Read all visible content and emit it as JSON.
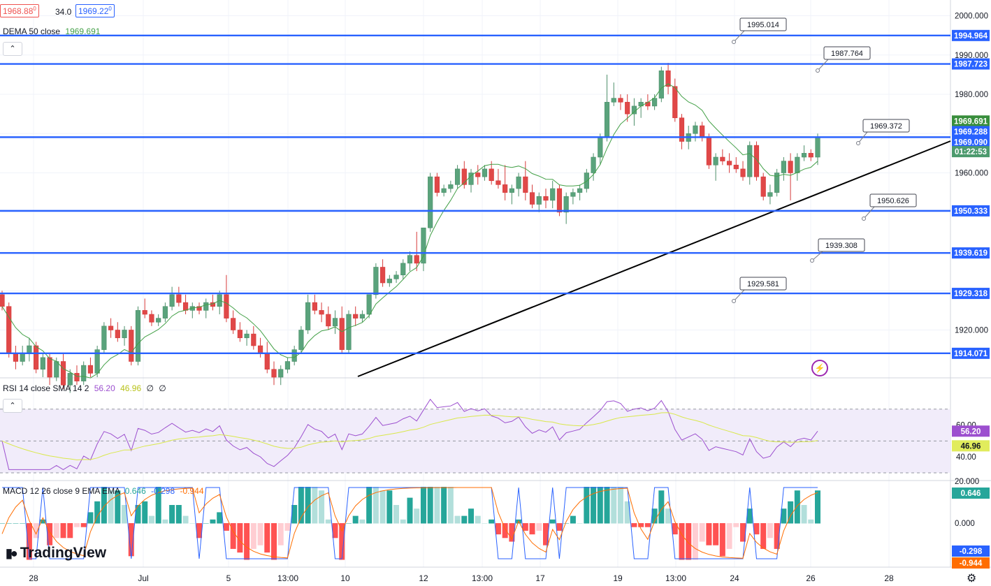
{
  "header": {
    "bid": "1968.88",
    "bid_sup": "0",
    "spread": "34.0",
    "ask": "1969.22",
    "ask_sup": "0",
    "dema_label": "DEMA 50 close",
    "dema_value": "1969.691"
  },
  "rsi": {
    "label": "RSI 14 close SMA 14 2",
    "value": "56.20",
    "sma_value": "46.96",
    "extra1": "∅",
    "extra2": "∅",
    "ticks": [
      "60.00",
      "40.00"
    ]
  },
  "macd": {
    "label": "MACD 12 26 close 9 EMA EMA",
    "hist_value": "0.646",
    "macd_value": "-0.298",
    "signal_value": "-0.944",
    "ticks": [
      "20.000",
      "0.000"
    ]
  },
  "price_axis": {
    "ticks": [
      "2000.000",
      "1990.000",
      "1980.000",
      "1960.000",
      "1920.000"
    ],
    "tags": [
      {
        "text": "1994.964",
        "color": "#2962ff",
        "price": 1994.964
      },
      {
        "text": "1987.723",
        "color": "#2962ff",
        "price": 1987.723
      },
      {
        "text": "1969.691",
        "color": "#388e3c",
        "price": 1973.2
      },
      {
        "text": "1969.288",
        "color": "#2962ff",
        "price": 1970.5
      },
      {
        "text": "1969.090",
        "color": "#2962ff",
        "price": 1967.8
      },
      {
        "text": "01:22:53",
        "color": "#4c9a6d",
        "price": 1965.4
      },
      {
        "text": "1950.333",
        "color": "#2962ff",
        "price": 1950.333
      },
      {
        "text": "1939.619",
        "color": "#2962ff",
        "price": 1939.619
      },
      {
        "text": "1929.318",
        "color": "#2962ff",
        "price": 1929.318
      },
      {
        "text": "1914.071",
        "color": "#2962ff",
        "price": 1914.071
      }
    ]
  },
  "time_axis": [
    "28",
    "Jul",
    "5",
    "13:00",
    "10",
    "12",
    "13:00",
    "17",
    "19",
    "13:00",
    "24",
    "26",
    "28"
  ],
  "callouts": [
    "1995.014",
    "1987.764",
    "1969.372",
    "1950.626",
    "1939.308",
    "1929.581"
  ],
  "levels": [
    1994.964,
    1987.723,
    1969.09,
    1950.333,
    1939.619,
    1929.318,
    1914.071
  ],
  "logo_text": "TradingView",
  "colors": {
    "up": "#26a69a",
    "down": "#ef5350",
    "level": "#2962ff",
    "dema": "#43a047",
    "rsi": "#9c4fcf",
    "rsi_sma": "#d9e84a",
    "macd": "#2962ff",
    "signal": "#ff6d00"
  },
  "chart_data": {
    "type": "candlestick",
    "y_range": [
      1908,
      2004
    ],
    "candles": [
      [
        1929,
        1930,
        1925,
        1926
      ],
      [
        1926,
        1927,
        1913,
        1914
      ],
      [
        1914,
        1916,
        1910,
        1912
      ],
      [
        1912,
        1916,
        1911,
        1914
      ],
      [
        1914,
        1918,
        1912,
        1916
      ],
      [
        1916,
        1917,
        1909,
        1910
      ],
      [
        1910,
        1914,
        1908,
        1913
      ],
      [
        1913,
        1914,
        1906,
        1908
      ],
      [
        1908,
        1913,
        1907,
        1912
      ],
      [
        1912,
        1914,
        1905,
        1906
      ],
      [
        1906,
        1910,
        1904,
        1909
      ],
      [
        1909,
        1911,
        1906,
        1907
      ],
      [
        1907,
        1912,
        1906,
        1911
      ],
      [
        1911,
        1913,
        1908,
        1909
      ],
      [
        1909,
        1916,
        1908,
        1915
      ],
      [
        1915,
        1922,
        1914,
        1921
      ],
      [
        1921,
        1923,
        1918,
        1920
      ],
      [
        1920,
        1922,
        1917,
        1918
      ],
      [
        1918,
        1921,
        1916,
        1920
      ],
      [
        1920,
        1921,
        1911,
        1912
      ],
      [
        1912,
        1926,
        1911,
        1925
      ],
      [
        1925,
        1928,
        1923,
        1924
      ],
      [
        1924,
        1925,
        1921,
        1922
      ],
      [
        1922,
        1924,
        1921,
        1923
      ],
      [
        1923,
        1927,
        1922,
        1926
      ],
      [
        1926,
        1931,
        1925,
        1929
      ],
      [
        1929,
        1931,
        1926,
        1927
      ],
      [
        1927,
        1929,
        1924,
        1925
      ],
      [
        1925,
        1927,
        1923,
        1926
      ],
      [
        1926,
        1927,
        1924,
        1925
      ],
      [
        1925,
        1928,
        1923,
        1927
      ],
      [
        1927,
        1929,
        1925,
        1926
      ],
      [
        1926,
        1930,
        1924,
        1929
      ],
      [
        1929,
        1934,
        1922,
        1923
      ],
      [
        1923,
        1925,
        1919,
        1920
      ],
      [
        1920,
        1922,
        1917,
        1918
      ],
      [
        1918,
        1920,
        1916,
        1919
      ],
      [
        1919,
        1921,
        1915,
        1916
      ],
      [
        1916,
        1918,
        1913,
        1914
      ],
      [
        1914,
        1917,
        1909,
        1910
      ],
      [
        1910,
        1912,
        1906,
        1908
      ],
      [
        1908,
        1911,
        1906,
        1910
      ],
      [
        1910,
        1913,
        1909,
        1912
      ],
      [
        1912,
        1916,
        1911,
        1915
      ],
      [
        1915,
        1921,
        1914,
        1920
      ],
      [
        1920,
        1929,
        1919,
        1927
      ],
      [
        1927,
        1929,
        1924,
        1925
      ],
      [
        1925,
        1927,
        1922,
        1924
      ],
      [
        1924,
        1926,
        1920,
        1921
      ],
      [
        1921,
        1925,
        1919,
        1923
      ],
      [
        1923,
        1926,
        1914,
        1915
      ],
      [
        1915,
        1925,
        1914,
        1924
      ],
      [
        1924,
        1926,
        1921,
        1923
      ],
      [
        1923,
        1925,
        1922,
        1924
      ],
      [
        1924,
        1929,
        1923,
        1929
      ],
      [
        1929,
        1937,
        1928,
        1936
      ],
      [
        1936,
        1938,
        1931,
        1932
      ],
      [
        1932,
        1934,
        1931,
        1933
      ],
      [
        1933,
        1935,
        1932,
        1934
      ],
      [
        1934,
        1938,
        1933,
        1937
      ],
      [
        1937,
        1940,
        1935,
        1939
      ],
      [
        1939,
        1945,
        1935,
        1937
      ],
      [
        1937,
        1946,
        1935,
        1946
      ],
      [
        1946,
        1960,
        1945,
        1959
      ],
      [
        1959,
        1960,
        1954,
        1955
      ],
      [
        1955,
        1957,
        1954,
        1956
      ],
      [
        1956,
        1958,
        1955,
        1957
      ],
      [
        1957,
        1962,
        1956,
        1961
      ],
      [
        1961,
        1963,
        1956,
        1957
      ],
      [
        1957,
        1961,
        1955,
        1960
      ],
      [
        1960,
        1962,
        1957,
        1959
      ],
      [
        1959,
        1962,
        1958,
        1961
      ],
      [
        1961,
        1963,
        1957,
        1958
      ],
      [
        1958,
        1961,
        1956,
        1957
      ],
      [
        1957,
        1962,
        1953,
        1955
      ],
      [
        1955,
        1957,
        1952,
        1956
      ],
      [
        1956,
        1960,
        1954,
        1959
      ],
      [
        1959,
        1963,
        1953,
        1955
      ],
      [
        1955,
        1957,
        1951,
        1952
      ],
      [
        1952,
        1955,
        1950,
        1954
      ],
      [
        1954,
        1956,
        1951,
        1953
      ],
      [
        1953,
        1958,
        1951,
        1956
      ],
      [
        1956,
        1957,
        1949,
        1950
      ],
      [
        1950,
        1955,
        1947,
        1954
      ],
      [
        1954,
        1956,
        1952,
        1955
      ],
      [
        1955,
        1957,
        1953,
        1956
      ],
      [
        1956,
        1961,
        1955,
        1960
      ],
      [
        1960,
        1965,
        1958,
        1964
      ],
      [
        1964,
        1970,
        1962,
        1969
      ],
      [
        1969,
        1985,
        1968,
        1978
      ],
      [
        1978,
        1983,
        1977,
        1979
      ],
      [
        1979,
        1980,
        1976,
        1978
      ],
      [
        1978,
        1980,
        1973,
        1975
      ],
      [
        1975,
        1979,
        1972,
        1977
      ],
      [
        1977,
        1979,
        1974,
        1978
      ],
      [
        1978,
        1980,
        1976,
        1977
      ],
      [
        1977,
        1980,
        1976,
        1979
      ],
      [
        1979,
        1987,
        1978,
        1986
      ],
      [
        1986,
        1988,
        1980,
        1982
      ],
      [
        1982,
        1984,
        1973,
        1974
      ],
      [
        1974,
        1975,
        1966,
        1968
      ],
      [
        1968,
        1972,
        1966,
        1970
      ],
      [
        1970,
        1973,
        1968,
        1972
      ],
      [
        1972,
        1973,
        1968,
        1969
      ],
      [
        1969,
        1970,
        1961,
        1962
      ],
      [
        1962,
        1965,
        1958,
        1964
      ],
      [
        1964,
        1966,
        1962,
        1963
      ],
      [
        1963,
        1965,
        1960,
        1962
      ],
      [
        1962,
        1964,
        1960,
        1961
      ],
      [
        1961,
        1963,
        1958,
        1959
      ],
      [
        1959,
        1968,
        1957,
        1967
      ],
      [
        1967,
        1968,
        1958,
        1959
      ],
      [
        1959,
        1960,
        1953,
        1954
      ],
      [
        1954,
        1957,
        1952,
        1955
      ],
      [
        1955,
        1961,
        1954,
        1960
      ],
      [
        1960,
        1964,
        1958,
        1963
      ],
      [
        1963,
        1965,
        1953,
        1960
      ],
      [
        1960,
        1965,
        1958,
        1964
      ],
      [
        1964,
        1967,
        1963,
        1965
      ],
      [
        1965,
        1966,
        1963,
        1964
      ],
      [
        1964,
        1970,
        1962,
        1969
      ]
    ]
  }
}
